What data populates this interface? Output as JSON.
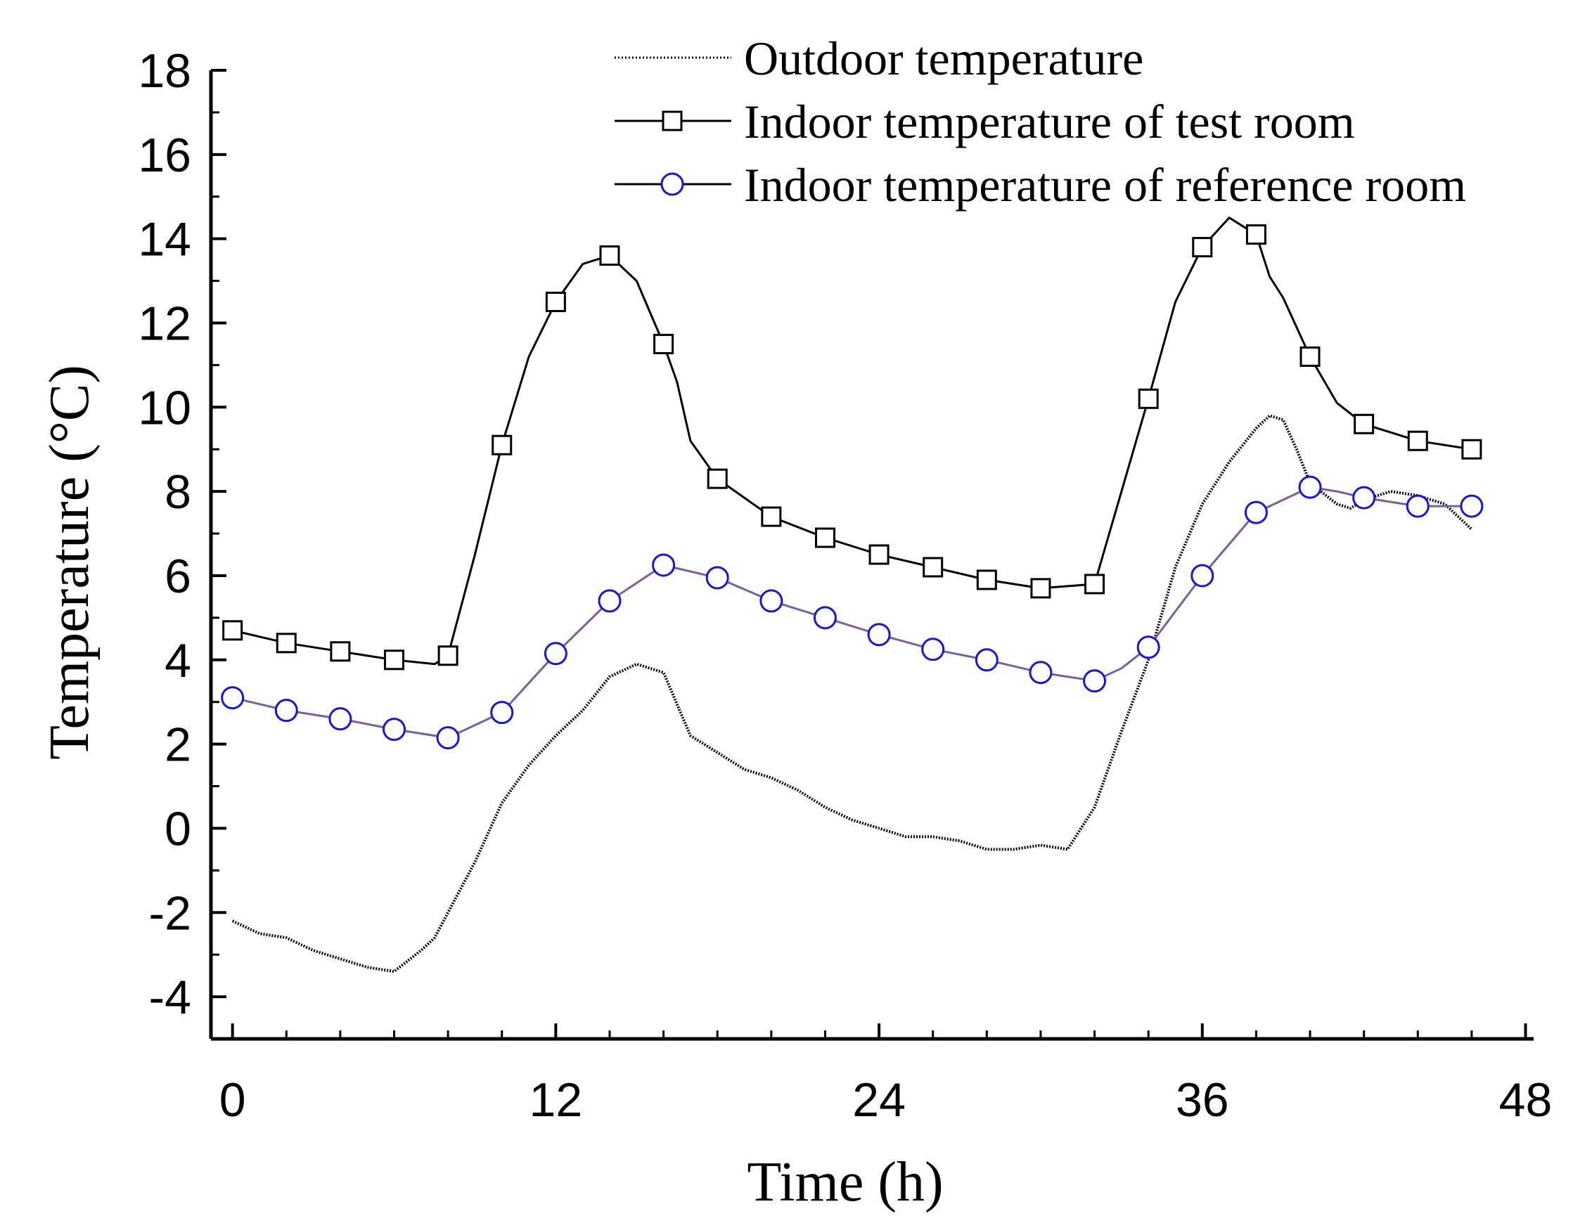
{
  "chart_data": {
    "type": "line",
    "title": "",
    "xlabel": "Time (h)",
    "ylabel": "Temperature (°C)",
    "xlim": [
      -0.8,
      48.3
    ],
    "ylim": [
      -5,
      18
    ],
    "xticks": [
      0,
      12,
      24,
      36,
      48
    ],
    "xtick_labels": [
      "0",
      "12",
      "24",
      "36",
      "48"
    ],
    "yticks": [
      -4,
      -2,
      0,
      2,
      4,
      6,
      8,
      10,
      12,
      14,
      16,
      18
    ],
    "ytick_labels": [
      "-4",
      "-2",
      "0",
      "2",
      "4",
      "6",
      "8",
      "10",
      "12",
      "14",
      "16",
      "18"
    ],
    "legend_position": "top-right",
    "series": [
      {
        "name": "Outdoor temperature",
        "style": "dotted",
        "color": "#000000",
        "marker": "none",
        "x": [
          0,
          1,
          2,
          3,
          4,
          5,
          6,
          7,
          7.5,
          8,
          9,
          10,
          11,
          12,
          13,
          14,
          15,
          16,
          17,
          18,
          19,
          20,
          21,
          22,
          23,
          24,
          25,
          26,
          27,
          28,
          29,
          30,
          31,
          32,
          33,
          34,
          35,
          36,
          37,
          38,
          38.5,
          39,
          39.5,
          40,
          41,
          41.5,
          42,
          43,
          44,
          45,
          46
        ],
        "y": [
          -2.2,
          -2.5,
          -2.6,
          -2.9,
          -3.1,
          -3.3,
          -3.4,
          -2.9,
          -2.6,
          -2.0,
          -0.8,
          0.6,
          1.5,
          2.2,
          2.8,
          3.6,
          3.9,
          3.7,
          2.2,
          1.8,
          1.4,
          1.2,
          0.9,
          0.5,
          0.2,
          0.0,
          -0.2,
          -0.2,
          -0.3,
          -0.5,
          -0.5,
          -0.4,
          -0.5,
          0.5,
          2.3,
          4.0,
          6.2,
          7.7,
          8.7,
          9.5,
          9.8,
          9.7,
          9.0,
          8.2,
          7.7,
          7.6,
          7.8,
          8.0,
          7.9,
          7.7,
          7.1
        ]
      },
      {
        "name": "Indoor temperature of test room",
        "style": "solid",
        "color": "#000000",
        "marker": "square",
        "x": [
          0,
          2,
          4,
          6,
          7.5,
          8,
          9,
          10,
          11,
          12,
          13,
          14,
          15,
          16,
          16.5,
          17,
          18,
          20,
          22,
          24,
          26,
          28,
          30,
          32,
          33,
          34,
          35,
          36,
          37,
          38,
          38.5,
          39,
          40,
          41,
          42,
          44,
          46
        ],
        "y": [
          4.7,
          4.4,
          4.2,
          4.0,
          3.9,
          4.1,
          6.5,
          9.1,
          11.2,
          12.5,
          13.4,
          13.6,
          13.0,
          11.5,
          10.6,
          9.2,
          8.3,
          7.4,
          6.9,
          6.5,
          6.2,
          5.9,
          5.7,
          5.8,
          8.0,
          10.2,
          12.5,
          13.8,
          14.5,
          14.1,
          13.1,
          12.6,
          11.2,
          10.1,
          9.6,
          9.2,
          9.0
        ]
      },
      {
        "name": "Indoor temperature of reference room",
        "style": "solid",
        "color": "#7a5e9e",
        "marker": "circle",
        "marker_color": "#1515e0",
        "x": [
          0,
          2,
          4,
          6,
          8,
          10,
          12,
          14,
          16,
          18,
          20,
          22,
          24,
          26,
          28,
          30,
          32,
          33,
          34,
          36,
          38,
          40,
          41,
          42,
          44,
          46
        ],
        "y": [
          3.1,
          2.8,
          2.6,
          2.35,
          2.15,
          2.75,
          4.15,
          5.4,
          6.25,
          5.95,
          5.4,
          5.0,
          4.6,
          4.25,
          4.0,
          3.7,
          3.5,
          3.8,
          4.3,
          6.0,
          7.5,
          8.1,
          8.0,
          7.85,
          7.65,
          7.65
        ]
      }
    ]
  }
}
